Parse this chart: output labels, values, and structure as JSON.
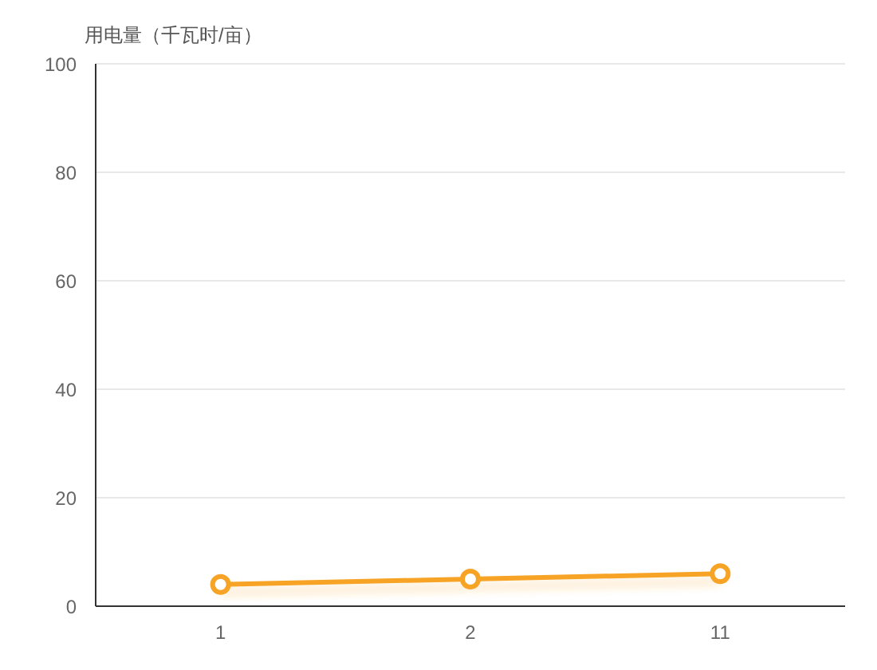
{
  "chart_data": {
    "type": "line",
    "ylabel": "用电量（千瓦时/亩）",
    "categories": [
      "1",
      "2",
      "11"
    ],
    "series": [
      {
        "color": "#f7a325",
        "values": [
          4,
          5,
          6
        ]
      }
    ],
    "ylim": [
      0,
      100
    ],
    "yticks": [
      0,
      20,
      40,
      60,
      80,
      100
    ],
    "grid": "y",
    "marker": "circle",
    "line_style": "solid"
  }
}
